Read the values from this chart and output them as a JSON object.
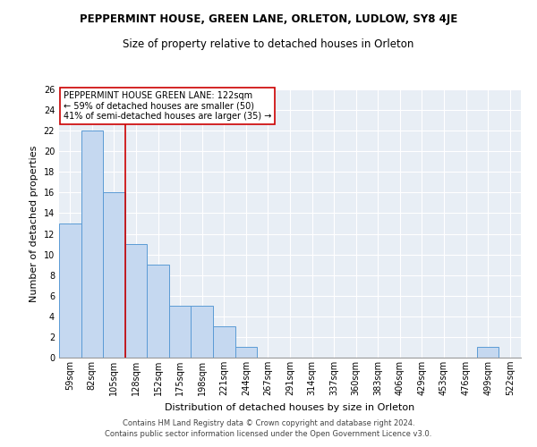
{
  "title": "PEPPERMINT HOUSE, GREEN LANE, ORLETON, LUDLOW, SY8 4JE",
  "subtitle": "Size of property relative to detached houses in Orleton",
  "xlabel": "Distribution of detached houses by size in Orleton",
  "ylabel": "Number of detached properties",
  "categories": [
    "59sqm",
    "82sqm",
    "105sqm",
    "128sqm",
    "152sqm",
    "175sqm",
    "198sqm",
    "221sqm",
    "244sqm",
    "267sqm",
    "291sqm",
    "314sqm",
    "337sqm",
    "360sqm",
    "383sqm",
    "406sqm",
    "429sqm",
    "453sqm",
    "476sqm",
    "499sqm",
    "522sqm"
  ],
  "values": [
    13,
    22,
    16,
    11,
    9,
    5,
    5,
    3,
    1,
    0,
    0,
    0,
    0,
    0,
    0,
    0,
    0,
    0,
    0,
    1,
    0
  ],
  "bar_color": "#c5d8f0",
  "bar_edge_color": "#5b9bd5",
  "vline_x": 2.5,
  "vline_color": "#cc0000",
  "annotation_text": "PEPPERMINT HOUSE GREEN LANE: 122sqm\n← 59% of detached houses are smaller (50)\n41% of semi-detached houses are larger (35) →",
  "annotation_box_color": "#ffffff",
  "annotation_box_edge_color": "#cc0000",
  "ylim": [
    0,
    26
  ],
  "yticks": [
    0,
    2,
    4,
    6,
    8,
    10,
    12,
    14,
    16,
    18,
    20,
    22,
    24,
    26
  ],
  "background_color": "#e8eef5",
  "footer_line1": "Contains HM Land Registry data © Crown copyright and database right 2024.",
  "footer_line2": "Contains public sector information licensed under the Open Government Licence v3.0.",
  "title_fontsize": 8.5,
  "subtitle_fontsize": 8.5,
  "axis_label_fontsize": 8,
  "tick_fontsize": 7,
  "annotation_fontsize": 7,
  "footer_fontsize": 6
}
